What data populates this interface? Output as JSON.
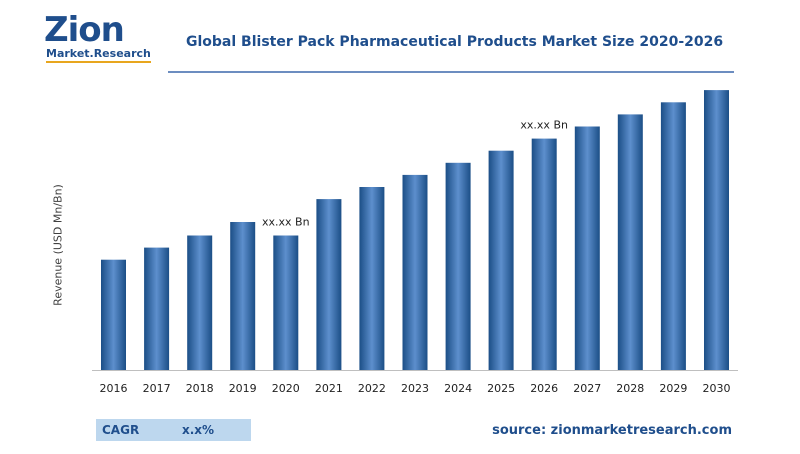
{
  "brand": {
    "logo_word": "Zion",
    "logo_sub": "Market.Research"
  },
  "colors": {
    "bar_dark": "#1b4e86",
    "bar_light": "#5d8fcd",
    "brand": "#1f4e8c"
  },
  "chart_data": {
    "type": "bar",
    "title": "Global Blister Pack Pharmaceutical Products Market Size 2020-2026",
    "ylabel": "Revenue (USD Mn/Bn)",
    "xlabel": "",
    "categories": [
      "2016",
      "2017",
      "2018",
      "2019",
      "2020",
      "2021",
      "2022",
      "2023",
      "2024",
      "2025",
      "2026",
      "2027",
      "2028",
      "2029",
      "2030"
    ],
    "values": [
      41,
      45.5,
      50,
      55,
      50,
      63.5,
      68,
      72.5,
      77,
      81.5,
      86,
      90.5,
      95,
      99.5,
      104
    ],
    "ylim": [
      0,
      110
    ],
    "grid": false,
    "annotations": [
      {
        "category": "2020",
        "text": "xx.xx Bn"
      },
      {
        "category": "2026",
        "text": "xx.xx Bn"
      }
    ]
  },
  "footer": {
    "cagr_label": "CAGR",
    "cagr_value": "x.x%",
    "source": "source: zionmarketresearch.com"
  }
}
